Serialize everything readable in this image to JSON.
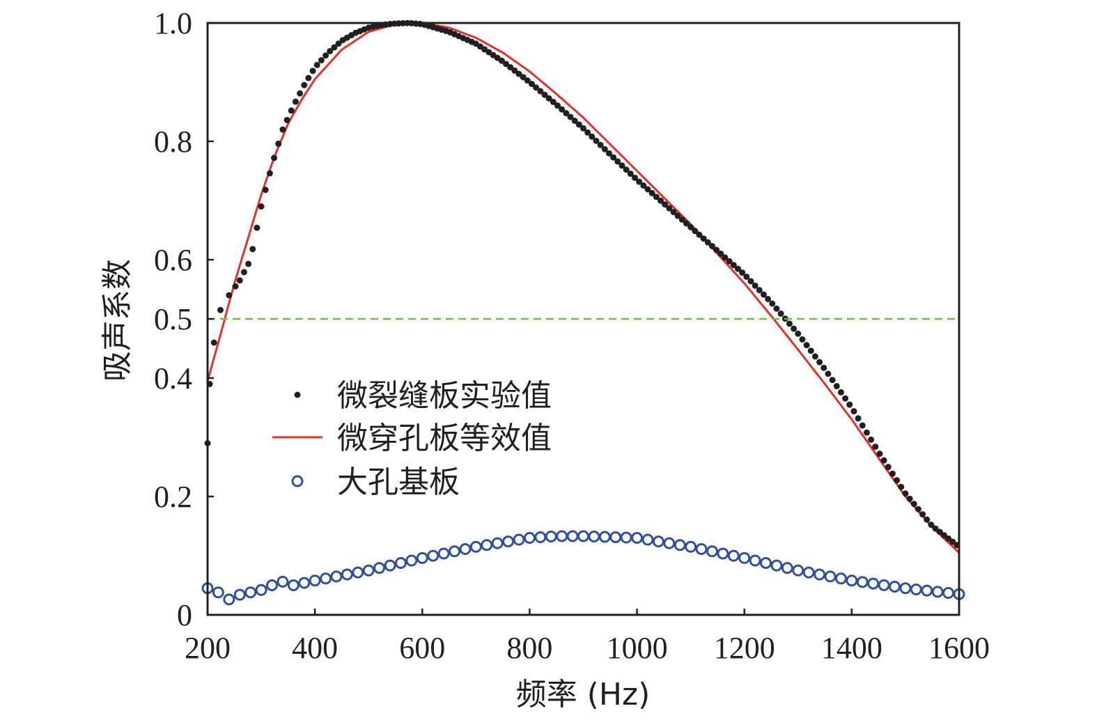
{
  "chart_data": {
    "type": "scatter",
    "xlabel": "频率 (Hz)",
    "ylabel": "吸声系数",
    "xlim": [
      200,
      1600
    ],
    "ylim": [
      0,
      1.0
    ],
    "xticks": [
      200,
      400,
      600,
      800,
      1000,
      1200,
      1400,
      1600
    ],
    "xtick_labels": [
      "200",
      "400",
      "600",
      "800",
      "1000",
      "1200",
      "1400",
      "1600"
    ],
    "yticks": [
      0,
      0.2,
      0.4,
      0.5,
      0.6,
      0.8,
      1.0
    ],
    "ytick_labels": [
      "0",
      "0.2",
      "0.4",
      "0.5",
      "0.6",
      "0.8",
      "1.0"
    ],
    "grid": false,
    "legend_position": "center-left",
    "reference_line": {
      "y": 0.5,
      "color": "#6cbf3f",
      "style": "dashed"
    },
    "series": [
      {
        "name": "微裂缝板实验值",
        "kind": "points",
        "color": "#231f20",
        "x_start": 200,
        "x_step": 8,
        "anchors": [
          [
            200,
            0.29
          ],
          [
            204,
            0.39
          ],
          [
            212,
            0.46
          ],
          [
            224,
            0.515
          ],
          [
            240,
            0.54
          ],
          [
            260,
            0.565
          ],
          [
            280,
            0.6
          ],
          [
            300,
            0.69
          ],
          [
            320,
            0.76
          ],
          [
            340,
            0.82
          ],
          [
            360,
            0.86
          ],
          [
            380,
            0.895
          ],
          [
            400,
            0.925
          ],
          [
            425,
            0.95
          ],
          [
            450,
            0.97
          ],
          [
            475,
            0.983
          ],
          [
            500,
            0.992
          ],
          [
            525,
            0.997
          ],
          [
            550,
            0.999
          ],
          [
            575,
            1.0
          ],
          [
            600,
            0.998
          ],
          [
            650,
            0.985
          ],
          [
            700,
            0.965
          ],
          [
            750,
            0.935
          ],
          [
            800,
            0.9
          ],
          [
            850,
            0.862
          ],
          [
            900,
            0.822
          ],
          [
            950,
            0.778
          ],
          [
            1000,
            0.735
          ],
          [
            1050,
            0.695
          ],
          [
            1100,
            0.655
          ],
          [
            1150,
            0.615
          ],
          [
            1200,
            0.575
          ],
          [
            1250,
            0.528
          ],
          [
            1300,
            0.475
          ],
          [
            1350,
            0.415
          ],
          [
            1400,
            0.35
          ],
          [
            1450,
            0.275
          ],
          [
            1500,
            0.205
          ],
          [
            1550,
            0.15
          ],
          [
            1600,
            0.115
          ]
        ]
      },
      {
        "name": "微穿孔板等效值",
        "kind": "line",
        "color": "#e0322d",
        "anchors": [
          [
            200,
            0.395
          ],
          [
            220,
            0.46
          ],
          [
            250,
            0.56
          ],
          [
            275,
            0.635
          ],
          [
            300,
            0.71
          ],
          [
            325,
            0.775
          ],
          [
            350,
            0.83
          ],
          [
            375,
            0.87
          ],
          [
            400,
            0.905
          ],
          [
            450,
            0.955
          ],
          [
            500,
            0.985
          ],
          [
            550,
            0.998
          ],
          [
            600,
            1.0
          ],
          [
            650,
            0.992
          ],
          [
            700,
            0.975
          ],
          [
            750,
            0.95
          ],
          [
            800,
            0.918
          ],
          [
            850,
            0.88
          ],
          [
            900,
            0.84
          ],
          [
            950,
            0.795
          ],
          [
            1000,
            0.75
          ],
          [
            1050,
            0.705
          ],
          [
            1100,
            0.66
          ],
          [
            1150,
            0.61
          ],
          [
            1200,
            0.56
          ],
          [
            1250,
            0.505
          ],
          [
            1300,
            0.448
          ],
          [
            1350,
            0.39
          ],
          [
            1400,
            0.33
          ],
          [
            1450,
            0.265
          ],
          [
            1500,
            0.2
          ],
          [
            1550,
            0.148
          ],
          [
            1600,
            0.105
          ]
        ]
      },
      {
        "name": "大孔基板",
        "kind": "circles",
        "color": "#2f4fa0",
        "x_start": 200,
        "x_step": 20,
        "anchors": [
          [
            200,
            0.045
          ],
          [
            220,
            0.038
          ],
          [
            240,
            0.026
          ],
          [
            260,
            0.034
          ],
          [
            280,
            0.038
          ],
          [
            300,
            0.042
          ],
          [
            320,
            0.05
          ],
          [
            340,
            0.056
          ],
          [
            360,
            0.05
          ],
          [
            400,
            0.058
          ],
          [
            500,
            0.075
          ],
          [
            600,
            0.096
          ],
          [
            700,
            0.115
          ],
          [
            800,
            0.13
          ],
          [
            850,
            0.133
          ],
          [
            900,
            0.133
          ],
          [
            1000,
            0.13
          ],
          [
            1100,
            0.115
          ],
          [
            1200,
            0.096
          ],
          [
            1300,
            0.075
          ],
          [
            1400,
            0.058
          ],
          [
            1500,
            0.045
          ],
          [
            1600,
            0.035
          ]
        ]
      }
    ]
  }
}
